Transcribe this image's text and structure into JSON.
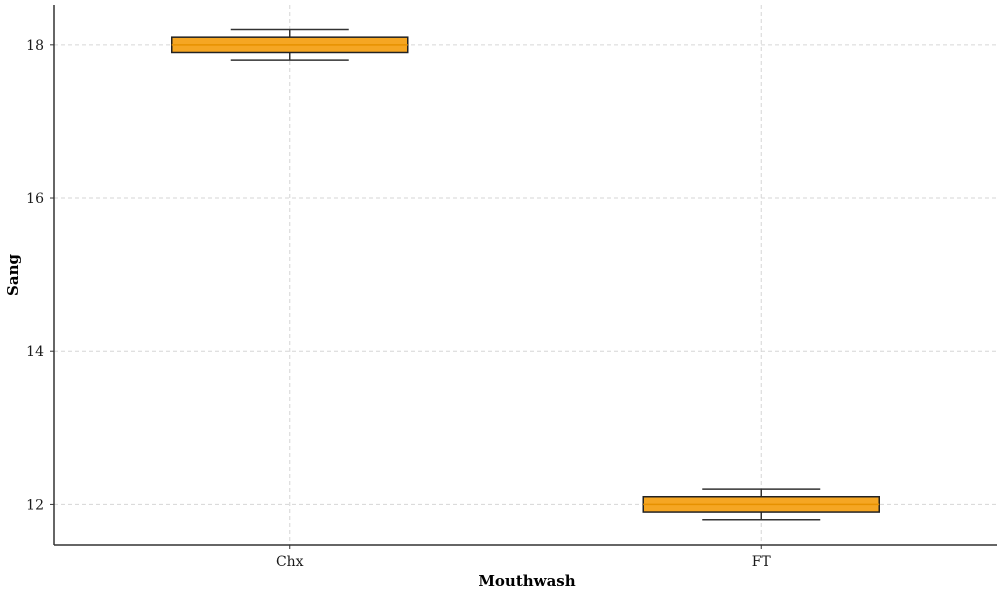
{
  "chart_data": {
    "type": "box",
    "title": "",
    "xlabel": "Mouthwash",
    "ylabel": "Sang",
    "categories": [
      "Chx",
      "FT"
    ],
    "boxes": [
      {
        "category": "Chx",
        "whisker_low": 17.8,
        "q1": 17.9,
        "median": 18.0,
        "q3": 18.1,
        "whisker_high": 18.2
      },
      {
        "category": "FT",
        "whisker_low": 11.8,
        "q1": 11.9,
        "median": 12.0,
        "q3": 12.1,
        "whisker_high": 12.2
      }
    ],
    "ylim": [
      11.47,
      18.52
    ],
    "yticks": [
      12,
      14,
      16,
      18
    ],
    "grid": true,
    "colors": {
      "box_fill": "#f5a623",
      "median_line": "#e69100",
      "edge": "#222222",
      "grid": "#d6d6d6"
    }
  }
}
